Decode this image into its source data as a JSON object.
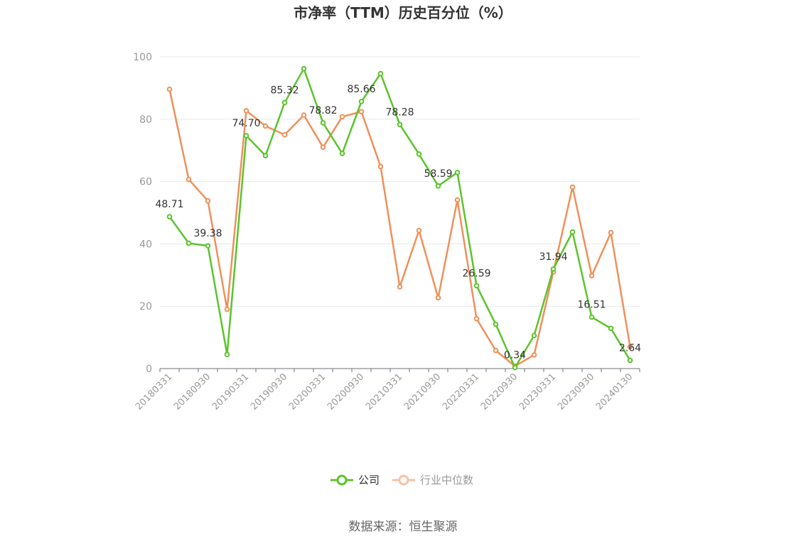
{
  "chart_data": {
    "type": "line",
    "title": "市净率（TTM）历史百分位（%）",
    "x": [
      "20180331",
      "20180630",
      "20180930",
      "20181231",
      "20190331",
      "20190630",
      "20190930",
      "20191231",
      "20200331",
      "20200630",
      "20200930",
      "20201231",
      "20210331",
      "20210630",
      "20210930",
      "20211231",
      "20220331",
      "20220630",
      "20220930",
      "20221231",
      "20230331",
      "20230630",
      "20230930",
      "20231231",
      "20240130"
    ],
    "xticks": [
      "20180331",
      "20180930",
      "20190331",
      "20190930",
      "20200331",
      "20200930",
      "20210331",
      "20210930",
      "20220331",
      "20220930",
      "20230331",
      "20230930",
      "20240130"
    ],
    "ylim": [
      0,
      100
    ],
    "yticks": [
      "0",
      "20",
      "40",
      "60",
      "80",
      "100"
    ],
    "grid": true,
    "legend_position": "bottom",
    "series": [
      {
        "name": "公司",
        "color": "#5bc42c",
        "values": [
          48.71,
          40.2,
          39.38,
          4.5,
          74.7,
          68.3,
          85.32,
          96.2,
          78.82,
          69.0,
          85.66,
          94.6,
          78.28,
          68.8,
          58.59,
          62.9,
          26.59,
          14.2,
          0.34,
          10.6,
          31.94,
          43.8,
          16.51,
          12.9,
          2.64
        ],
        "labels": [
          "48.71",
          "",
          "39.38",
          "",
          "74.70",
          "",
          "85.32",
          "",
          "78.82",
          "",
          "85.66",
          "",
          "78.28",
          "",
          "58.59",
          "",
          "26.59",
          "",
          "0.34",
          "",
          "31.94",
          "",
          "16.51",
          "",
          "2.64"
        ]
      },
      {
        "name": "行业中位数",
        "color": "#f0905a",
        "values": [
          89.6,
          60.7,
          53.8,
          19.0,
          82.7,
          77.8,
          75.0,
          81.3,
          71.0,
          80.8,
          82.4,
          64.8,
          26.2,
          44.3,
          22.7,
          54.1,
          16.0,
          5.8,
          0.8,
          4.4,
          31.0,
          58.2,
          29.8,
          43.6,
          7.0
        ]
      }
    ],
    "source": "数据来源：恒生聚源"
  }
}
